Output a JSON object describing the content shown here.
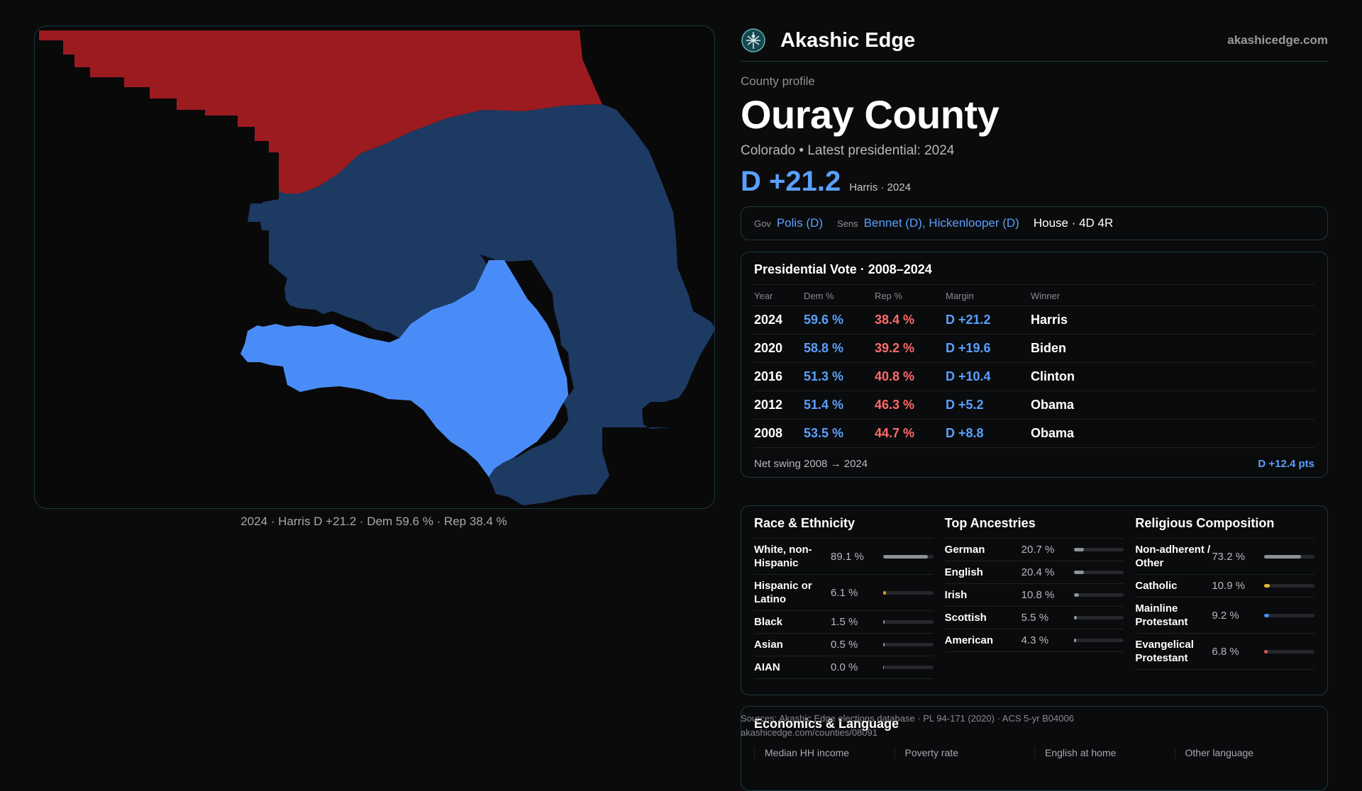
{
  "brand": {
    "name": "Akashic Edge",
    "url": "akashicedge.com"
  },
  "header": {
    "eyebrow": "County profile",
    "county": "Ouray County",
    "subtitle": "Colorado • Latest presidential: 2024",
    "margin": "D +21.2",
    "margin_note": "Harris · 2024"
  },
  "map": {
    "caption": "2024 · Harris D +21.2 · Dem 59.6 % · Rep 38.4 %",
    "colors": {
      "rep": "#9b1b1f",
      "dem_dark": "#1d3a63",
      "dem_light": "#4a8cf7"
    }
  },
  "officials": {
    "gov_label": "Gov",
    "gov": "Polis (D)",
    "sens_label": "Sens",
    "sens": "Bennet (D), Hickenlooper (D)",
    "house": "House · 4D 4R"
  },
  "presidential": {
    "title": "Presidential Vote · 2008–2024",
    "columns": [
      "Year",
      "Dem %",
      "Rep %",
      "Margin",
      "Winner"
    ],
    "rows": [
      {
        "year": "2024",
        "dem": "59.6 %",
        "rep": "38.4 %",
        "margin": "D +21.2",
        "winner": "Harris"
      },
      {
        "year": "2020",
        "dem": "58.8 %",
        "rep": "39.2 %",
        "margin": "D +19.6",
        "winner": "Biden"
      },
      {
        "year": "2016",
        "dem": "51.3 %",
        "rep": "40.8 %",
        "margin": "D +10.4",
        "winner": "Clinton"
      },
      {
        "year": "2012",
        "dem": "51.4 %",
        "rep": "46.3 %",
        "margin": "D +5.2",
        "winner": "Obama"
      },
      {
        "year": "2008",
        "dem": "53.5 %",
        "rep": "44.7 %",
        "margin": "D +8.8",
        "winner": "Obama"
      }
    ],
    "swing_label": "Net swing 2008 → 2024",
    "swing_value": "D +12.4 pts"
  },
  "race": {
    "title": "Race & Ethnicity",
    "items": [
      {
        "label": "White, non-Hispanic",
        "value": "89.1 %",
        "fraction": 0.891,
        "color": "#8e9198"
      },
      {
        "label": "Hispanic or Latino",
        "value": "6.1 %",
        "fraction": 0.061,
        "color": "#e59a2b"
      },
      {
        "label": "Black",
        "value": "1.5 %",
        "fraction": 0.015,
        "color": "#8e9198"
      },
      {
        "label": "Asian",
        "value": "0.5 %",
        "fraction": 0.005,
        "color": "#8e9198"
      },
      {
        "label": "AIAN",
        "value": "0.0 %",
        "fraction": 0.0,
        "color": "#8e9198"
      }
    ]
  },
  "ancestries": {
    "title": "Top Ancestries",
    "items": [
      {
        "label": "German",
        "value": "20.7 %",
        "fraction": 0.207,
        "color": "#8e9198"
      },
      {
        "label": "English",
        "value": "20.4 %",
        "fraction": 0.204,
        "color": "#8e9198"
      },
      {
        "label": "Irish",
        "value": "10.8 %",
        "fraction": 0.108,
        "color": "#8e9198"
      },
      {
        "label": "Scottish",
        "value": "5.5 %",
        "fraction": 0.055,
        "color": "#8e9198"
      },
      {
        "label": "American",
        "value": "4.3 %",
        "fraction": 0.043,
        "color": "#8e9198"
      }
    ]
  },
  "religion": {
    "title": "Religious Composition",
    "items": [
      {
        "label": "Non-adherent / Other",
        "value": "73.2 %",
        "fraction": 0.732,
        "color": "#8e9198"
      },
      {
        "label": "Catholic",
        "value": "10.9 %",
        "fraction": 0.109,
        "color": "#e5b52b"
      },
      {
        "label": "Mainline Protestant",
        "value": "9.2 %",
        "fraction": 0.092,
        "color": "#4a8cf7"
      },
      {
        "label": "Evangelical Protestant",
        "value": "6.8 %",
        "fraction": 0.068,
        "color": "#e05555"
      }
    ]
  },
  "economics": {
    "title": "Economics & Language",
    "labels": [
      "Median HH income",
      "Poverty rate",
      "English at home",
      "Other language"
    ]
  },
  "sources": {
    "line1": "Sources: Akashic Edge elections database · PL 94-171 (2020) · ACS 5-yr B04006",
    "line2": "akashicedge.com/counties/08091"
  }
}
